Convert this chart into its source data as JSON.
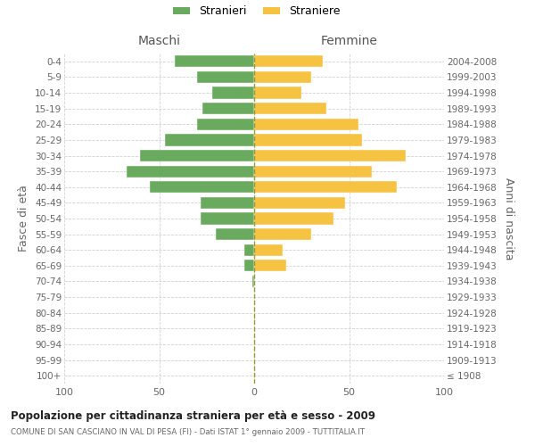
{
  "age_groups": [
    "100+",
    "95-99",
    "90-94",
    "85-89",
    "80-84",
    "75-79",
    "70-74",
    "65-69",
    "60-64",
    "55-59",
    "50-54",
    "45-49",
    "40-44",
    "35-39",
    "30-34",
    "25-29",
    "20-24",
    "15-19",
    "10-14",
    "5-9",
    "0-4"
  ],
  "birth_years": [
    "≤ 1908",
    "1909-1913",
    "1914-1918",
    "1919-1923",
    "1924-1928",
    "1929-1933",
    "1934-1938",
    "1939-1943",
    "1944-1948",
    "1949-1953",
    "1954-1958",
    "1959-1963",
    "1964-1968",
    "1969-1973",
    "1974-1978",
    "1979-1983",
    "1984-1988",
    "1989-1993",
    "1994-1998",
    "1999-2003",
    "2004-2008"
  ],
  "maschi": [
    0,
    0,
    0,
    0,
    0,
    0,
    1,
    5,
    5,
    20,
    28,
    28,
    55,
    67,
    60,
    47,
    30,
    27,
    22,
    30,
    42
  ],
  "femmine": [
    0,
    0,
    0,
    0,
    0,
    0,
    0,
    17,
    15,
    30,
    42,
    48,
    75,
    62,
    80,
    57,
    55,
    38,
    25,
    30,
    36
  ],
  "maschi_color": "#6aaa5e",
  "femmine_color": "#f5c242",
  "background_color": "#ffffff",
  "grid_color": "#cccccc",
  "title": "Popolazione per cittadinanza straniera per età e sesso - 2009",
  "subtitle": "COMUNE DI SAN CASCIANO IN VAL DI PESA (FI) - Dati ISTAT 1° gennaio 2009 - TUTTITALIA.IT",
  "xlabel_left": "Maschi",
  "xlabel_right": "Femmine",
  "ylabel_left": "Fasce di età",
  "ylabel_right": "Anni di nascita",
  "legend_maschi": "Stranieri",
  "legend_femmine": "Straniere",
  "xlim": 100
}
